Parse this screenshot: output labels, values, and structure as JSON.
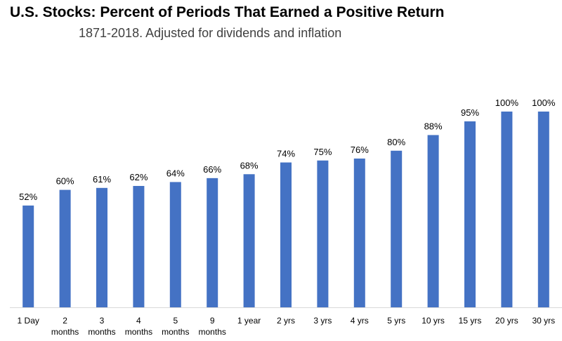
{
  "chart_data": {
    "type": "bar",
    "title": "U.S. Stocks: Percent of Periods That Earned a Positive Return",
    "subtitle": "1871-2018. Adjusted for dividends and inflation",
    "categories": [
      [
        "1 Day"
      ],
      [
        "2",
        "months"
      ],
      [
        "3",
        "months"
      ],
      [
        "4",
        "months"
      ],
      [
        "5",
        "months"
      ],
      [
        "9",
        "months"
      ],
      [
        "1 year"
      ],
      [
        "2 yrs"
      ],
      [
        "3 yrs"
      ],
      [
        "4 yrs"
      ],
      [
        "5 yrs"
      ],
      [
        "10 yrs"
      ],
      [
        "15 yrs"
      ],
      [
        "20 yrs"
      ],
      [
        "30 yrs"
      ]
    ],
    "values": [
      52,
      60,
      61,
      62,
      64,
      66,
      68,
      74,
      75,
      76,
      80,
      88,
      95,
      100,
      100
    ],
    "value_labels": [
      "52%",
      "60%",
      "61%",
      "62%",
      "64%",
      "66%",
      "68%",
      "74%",
      "75%",
      "76%",
      "80%",
      "88%",
      "95%",
      "100%",
      "100%"
    ],
    "ylim": [
      0,
      100
    ],
    "bar_color": "#4472c4",
    "axis_color": "#d9d9d9",
    "grid": false,
    "legend": "none"
  }
}
